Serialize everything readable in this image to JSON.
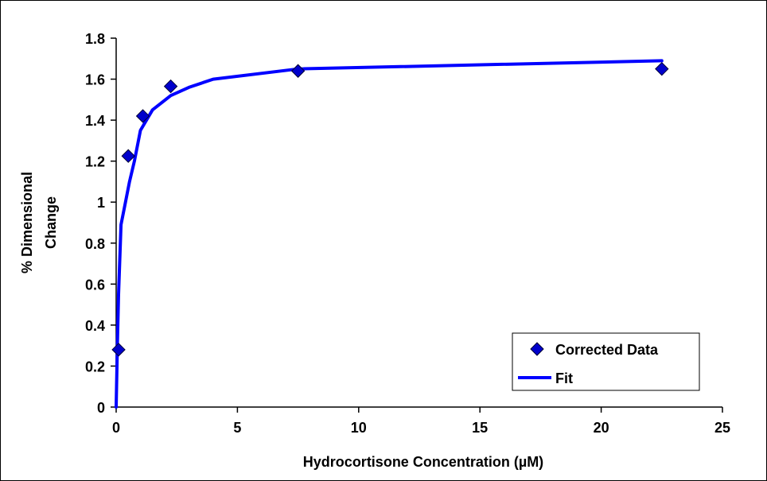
{
  "chart_data": {
    "type": "scatter",
    "title": "",
    "xlabel": "Hydrocortisone Concentration  (µM)",
    "ylabel_lines": [
      "% Dimensional",
      "Change"
    ],
    "xlim": [
      0,
      25
    ],
    "ylim": [
      0,
      1.8
    ],
    "xticks": [
      "0",
      "5",
      "10",
      "15",
      "20",
      "25"
    ],
    "yticks": [
      "0",
      "0.2",
      "0.4",
      "0.6",
      "0.8",
      "1",
      "1.2",
      "1.4",
      "1.6",
      "1.8"
    ],
    "grid": false,
    "legend_position": "bottom-right",
    "series": [
      {
        "name": "Corrected Data",
        "kind": "markers",
        "marker": "diamond",
        "color": "#0000CC",
        "x": [
          0.1,
          0.5,
          1.1,
          2.25,
          7.5,
          22.5
        ],
        "y": [
          0.28,
          1.225,
          1.42,
          1.565,
          1.64,
          1.65
        ]
      },
      {
        "name": "Fit",
        "kind": "line",
        "color": "#0000FF",
        "x": [
          0,
          0.05,
          0.1,
          0.2,
          0.35,
          0.55,
          0.75,
          1.0,
          1.5,
          2.25,
          3.0,
          4.0,
          7.5,
          22.5
        ],
        "y": [
          0,
          0.3,
          0.55,
          0.89,
          0.98,
          1.1,
          1.2,
          1.35,
          1.45,
          1.52,
          1.56,
          1.6,
          1.65,
          1.69
        ]
      }
    ]
  }
}
